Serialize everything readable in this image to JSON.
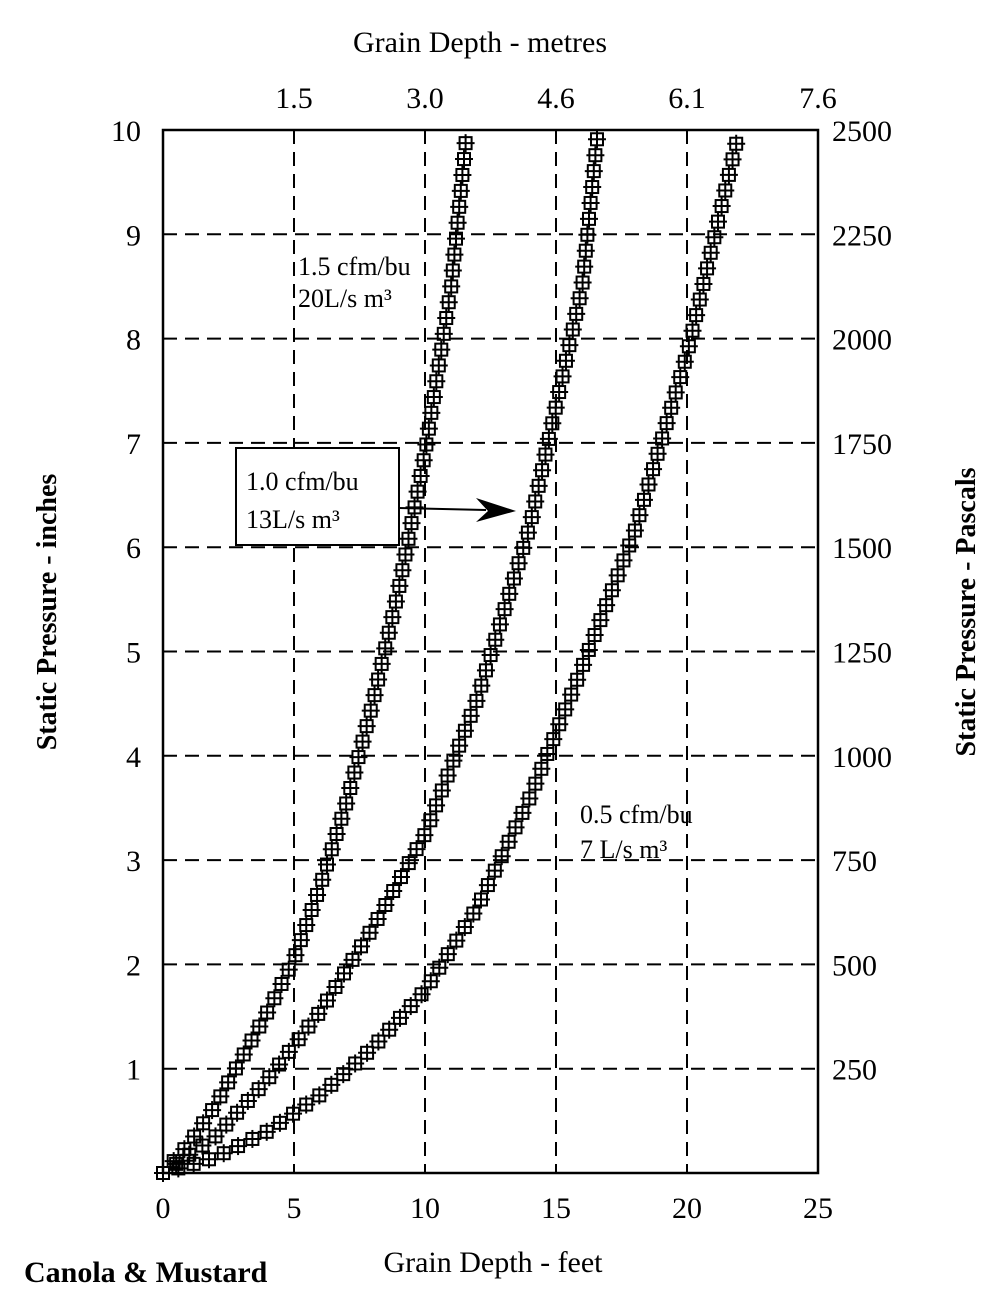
{
  "chart_data": {
    "type": "line",
    "footer_label": "Canola & Mustard",
    "xlabel_bottom": "Grain Depth - feet",
    "xlabel_top": "Grain Depth - metres",
    "ylabel_left": "Static Pressure - inches",
    "ylabel_right": "Static Pressure - Pascals",
    "xlim": [
      0,
      25
    ],
    "ylim": [
      0,
      10
    ],
    "grid": true,
    "x_ticks_bottom": [
      0,
      5,
      10,
      15,
      20,
      25
    ],
    "x_ticks_top": [
      {
        "at_feet": 5,
        "label": "1.5"
      },
      {
        "at_feet": 10,
        "label": "3.0"
      },
      {
        "at_feet": 15,
        "label": "4.6"
      },
      {
        "at_feet": 20,
        "label": "6.1"
      },
      {
        "at_feet": 25,
        "label": "7.6"
      }
    ],
    "y_ticks_left": [
      1,
      2,
      3,
      4,
      5,
      6,
      7,
      8,
      9,
      10
    ],
    "y_ticks_right": [
      {
        "at_inches": 1,
        "label": "250"
      },
      {
        "at_inches": 2,
        "label": "500"
      },
      {
        "at_inches": 3,
        "label": "750"
      },
      {
        "at_inches": 4,
        "label": "1000"
      },
      {
        "at_inches": 5,
        "label": "1250"
      },
      {
        "at_inches": 6,
        "label": "1500"
      },
      {
        "at_inches": 7,
        "label": "1750"
      },
      {
        "at_inches": 8,
        "label": "2000"
      },
      {
        "at_inches": 9,
        "label": "2250"
      },
      {
        "at_inches": 10,
        "label": "2500"
      }
    ],
    "series": [
      {
        "annotation": [
          "1.5 cfm/bu",
          "20L/s m³"
        ],
        "x": [
          0,
          1,
          2,
          3,
          4,
          5,
          6,
          7,
          8,
          9,
          10,
          11,
          11.6
        ],
        "y": [
          0,
          0.28,
          0.65,
          1.1,
          1.55,
          2.05,
          2.75,
          3.55,
          4.5,
          5.6,
          6.9,
          8.5,
          10
        ]
      },
      {
        "annotation": [
          "1.0 cfm/bu",
          "13L/s m³"
        ],
        "x": [
          0,
          2,
          4,
          6,
          8,
          10,
          12,
          14,
          16,
          16.6
        ],
        "y": [
          0,
          0.35,
          0.9,
          1.55,
          2.35,
          3.25,
          4.55,
          6.2,
          8.5,
          10
        ]
      },
      {
        "annotation": [
          "0.5 cfm/bu",
          "7 L/s m³"
        ],
        "x": [
          0,
          2,
          4,
          6,
          8,
          10,
          12,
          14,
          16,
          18,
          20,
          22
        ],
        "y": [
          0,
          0.15,
          0.4,
          0.75,
          1.2,
          1.75,
          2.55,
          3.6,
          4.85,
          6.15,
          7.85,
          10
        ]
      }
    ]
  }
}
